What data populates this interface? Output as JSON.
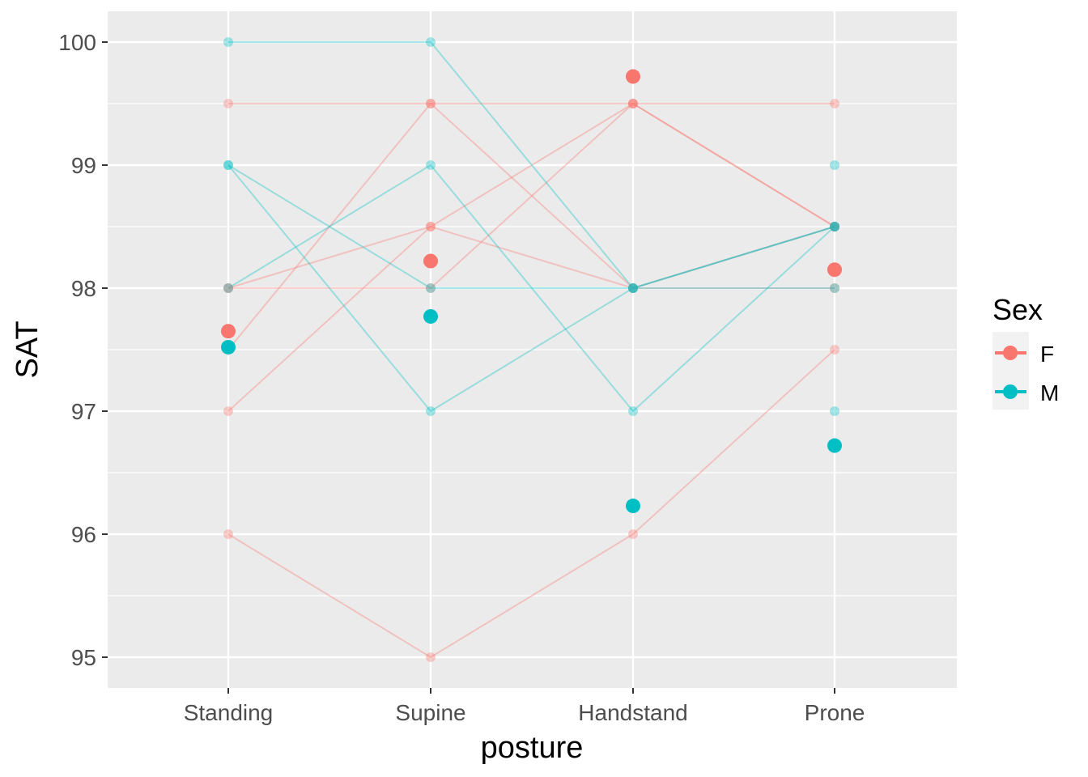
{
  "chart_data": {
    "type": "line",
    "xlabel": "posture",
    "ylabel": "SAT",
    "categories": [
      "Standing",
      "Supine",
      "Handstand",
      "Prone"
    ],
    "ylim": [
      94.75,
      100.25
    ],
    "y_ticks": [
      95,
      96,
      97,
      98,
      99,
      100
    ],
    "grid": true,
    "legend": {
      "title": "Sex",
      "position": "right",
      "entries": [
        {
          "label": "F",
          "color": "#F8766D"
        },
        {
          "label": "M",
          "color": "#00BFC4"
        }
      ]
    },
    "series": [
      {
        "sex": "F",
        "values": [
          99.5,
          99.5,
          99.5,
          99.5
        ]
      },
      {
        "sex": "F",
        "values": [
          98,
          98.5,
          98,
          98.5
        ]
      },
      {
        "sex": "F",
        "values": [
          98,
          98,
          99.5,
          98.5
        ]
      },
      {
        "sex": "F",
        "values": [
          97.5,
          99.5,
          98,
          98
        ]
      },
      {
        "sex": "F",
        "values": [
          97,
          98.5,
          99.5,
          98.5
        ]
      },
      {
        "sex": "F",
        "values": [
          96,
          95,
          96,
          97.5
        ]
      },
      {
        "sex": "M",
        "values": [
          100,
          100,
          98,
          98.5
        ]
      },
      {
        "sex": "M",
        "values": [
          99,
          98,
          98,
          98.5
        ]
      },
      {
        "sex": "M",
        "values": [
          99,
          97,
          98,
          98
        ]
      },
      {
        "sex": "M",
        "values": [
          98,
          99,
          97,
          98.5
        ]
      }
    ],
    "means": [
      {
        "sex": "F",
        "values": [
          97.65,
          98.22,
          99.72,
          98.15
        ]
      },
      {
        "sex": "M",
        "values": [
          97.52,
          97.77,
          96.23,
          96.72
        ]
      }
    ],
    "extra_points": [
      {
        "sex": "M",
        "x": "Prone",
        "y": 99
      },
      {
        "sex": "M",
        "x": "Prone",
        "y": 97
      }
    ]
  }
}
